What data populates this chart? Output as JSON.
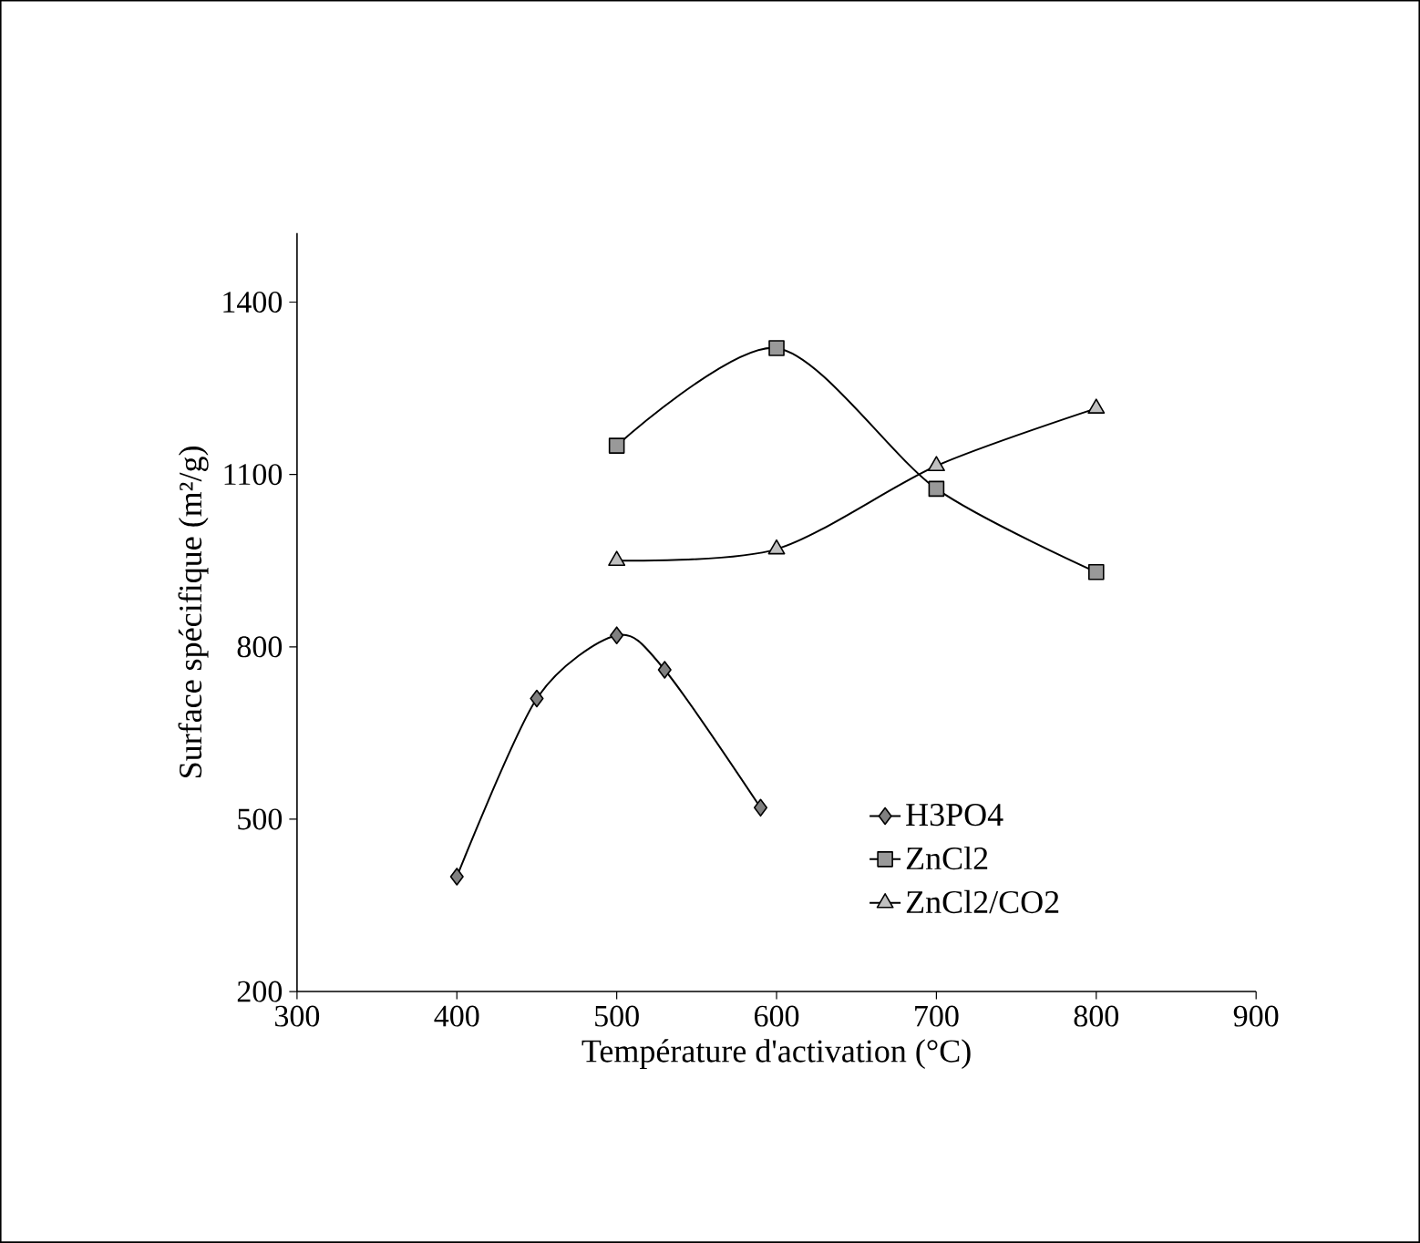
{
  "chart_data": {
    "type": "line",
    "xlabel": "Température d'activation  (°C)",
    "ylabel": "Surface spécifique (m²/g)",
    "xlim": [
      300,
      900
    ],
    "xticks": [
      300,
      400,
      500,
      600,
      700,
      800,
      900
    ],
    "ylim": [
      200,
      1520
    ],
    "yticks": [
      200,
      500,
      800,
      1100,
      1400
    ],
    "legend": "bottom right",
    "grid": false,
    "series": [
      {
        "name": "H3PO4",
        "marker": "diamond",
        "color": "#808080",
        "x": [
          400,
          450,
          500,
          530,
          590
        ],
        "values": [
          400,
          710,
          820,
          760,
          520
        ]
      },
      {
        "name": "ZnCl2",
        "marker": "square",
        "color": "#999999",
        "x": [
          500,
          600,
          700,
          800
        ],
        "values": [
          1150,
          1320,
          1075,
          930
        ]
      },
      {
        "name": "ZnCl2/CO2",
        "marker": "triangle",
        "color": "#c0c0c0",
        "x": [
          500,
          600,
          700,
          800
        ],
        "values": [
          950,
          970,
          1115,
          1215
        ]
      }
    ]
  }
}
